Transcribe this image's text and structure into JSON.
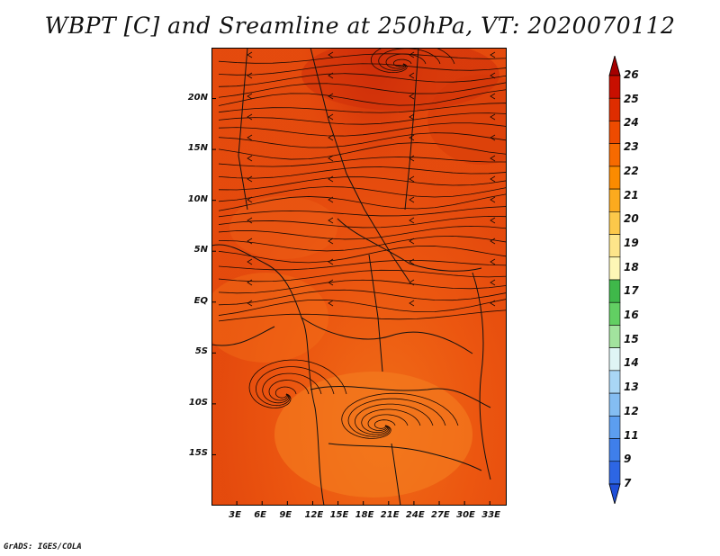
{
  "title": "WBPT [C] and Sreamline at 250hPa, VT: 2020070112",
  "credit": "GrADS: IGES/COLA",
  "map": {
    "lat_labels": [
      "20N",
      "15N",
      "10N",
      "5N",
      "EQ",
      "5S",
      "10S",
      "15S"
    ],
    "lon_labels": [
      "3E",
      "6E",
      "9E",
      "12E",
      "15E",
      "18E",
      "21E",
      "24E",
      "27E",
      "30E",
      "33E"
    ],
    "lat_values": [
      20,
      15,
      10,
      5,
      0,
      -5,
      -10,
      -15
    ],
    "lon_values": [
      3,
      6,
      9,
      12,
      15,
      18,
      21,
      24,
      27,
      30,
      33
    ],
    "lat_range": [
      -20,
      25
    ],
    "lon_range": [
      0,
      35
    ]
  },
  "colorbar": {
    "labels": [
      "26",
      "25",
      "24",
      "23",
      "22",
      "21",
      "20",
      "19",
      "18",
      "17",
      "16",
      "15",
      "14",
      "13",
      "12",
      "11",
      "9",
      "7"
    ],
    "colors": [
      "#a50000",
      "#c80f00",
      "#de2d00",
      "#ee4b00",
      "#f76a00",
      "#fb8b00",
      "#fcaa1e",
      "#fcc84a",
      "#fde58a",
      "#fdf7b6",
      "#3fb84a",
      "#62cf63",
      "#a2e39e",
      "#dff5f5",
      "#a9d6f5",
      "#84bdf2",
      "#5c9ef0",
      "#3f7fea",
      "#2d66e4",
      "#1f4fd8"
    ]
  }
}
